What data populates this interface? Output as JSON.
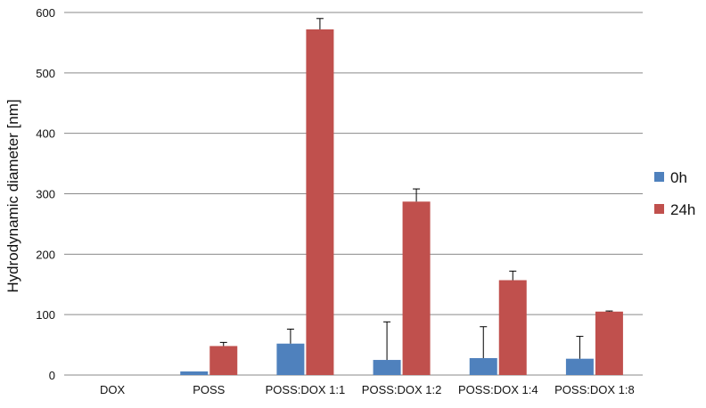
{
  "chart_data": {
    "type": "bar",
    "title": "",
    "xlabel": "",
    "ylabel": "Hydrodynamic diameter [nm]",
    "ylim": [
      0,
      600
    ],
    "yticks": [
      0,
      100,
      200,
      300,
      400,
      500,
      600
    ],
    "grid": "horizontal",
    "legend_position": "right",
    "categories": [
      "DOX",
      "POSS",
      "POSS:DOX 1:1",
      "POSS:DOX 1:2",
      "POSS:DOX 1:4",
      "POSS:DOX 1:8"
    ],
    "series": [
      {
        "name": "0h",
        "color": "#4f81bd",
        "values": [
          0,
          6,
          52,
          25,
          28,
          27
        ],
        "errors": [
          0,
          0,
          24,
          63,
          52,
          37
        ]
      },
      {
        "name": "24h",
        "color": "#c0504d",
        "values": [
          0,
          48,
          572,
          287,
          157,
          105
        ],
        "errors": [
          0,
          6,
          18,
          21,
          15,
          1
        ]
      }
    ]
  }
}
